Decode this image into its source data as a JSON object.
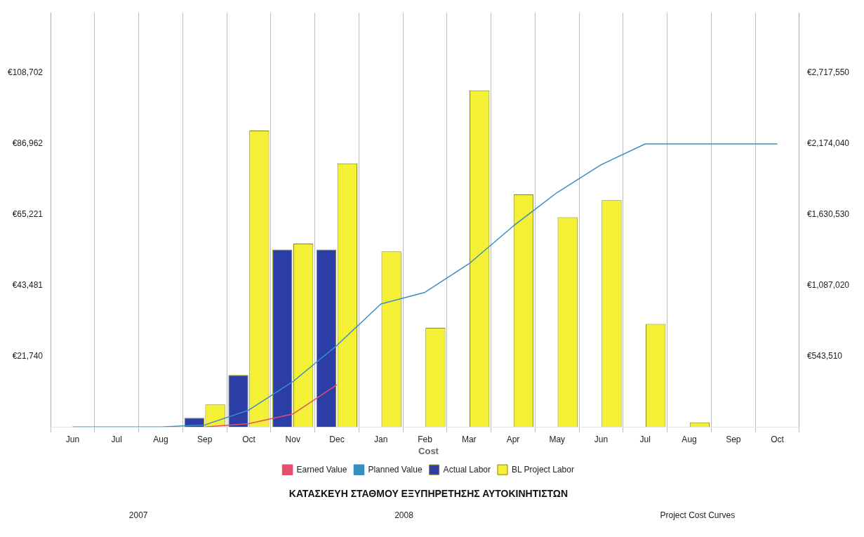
{
  "chart_data": {
    "type": "bar",
    "title": "ΚΑΤΑΣΚΕΥΗ ΣΤΑΘΜΟΥ ΕΞΥΠΗΡΕΤΗΣΗΣ ΑΥΤΟΚΙΝΗΤΙΣΤΩΝ",
    "categories": [
      "Jun",
      "Jul",
      "Aug",
      "Sep",
      "Oct",
      "Nov",
      "Dec",
      "Jan",
      "Feb",
      "Mar",
      "Apr",
      "May",
      "Jun",
      "Jul",
      "Aug",
      "Sep",
      "Oct"
    ],
    "series": [
      {
        "name": "Actual Labor",
        "color": "#2b3da6",
        "values": [
          null,
          null,
          null,
          2800,
          15900,
          54400,
          54400,
          null,
          null,
          null,
          null,
          null,
          null,
          null,
          null,
          null,
          null
        ]
      },
      {
        "name": "BL Project Labor",
        "color": "#f4f036",
        "values": [
          null,
          null,
          null,
          6900,
          90900,
          56200,
          80800,
          53800,
          30400,
          103200,
          71300,
          64300,
          69500,
          31600,
          1400,
          null,
          null
        ]
      },
      {
        "name": "Earned Value",
        "type": "line",
        "axis": "y2",
        "color": "#e2506c",
        "values": [
          null,
          null,
          null,
          0,
          25000,
          99000,
          323000,
          null,
          null,
          null,
          null,
          null,
          null,
          null,
          null,
          null,
          null
        ]
      },
      {
        "name": "Planned Value",
        "type": "line",
        "axis": "y2",
        "color": "#3a8ec0",
        "values": [
          0,
          0,
          0,
          15000,
          129000,
          347000,
          625000,
          943000,
          1032000,
          1251000,
          1539000,
          1797000,
          2010000,
          2170000,
          2170000,
          2170000,
          2170000
        ]
      }
    ],
    "ylim": [
      0,
      127000
    ],
    "yticks": [
      {
        "value": 21740,
        "label": "€21,740"
      },
      {
        "value": 43481,
        "label": "€43,481"
      },
      {
        "value": 65221,
        "label": "€65,221"
      },
      {
        "value": 86962,
        "label": "€86,962"
      },
      {
        "value": 108702,
        "label": "€108,702"
      }
    ],
    "y2lim": [
      0,
      3175000
    ],
    "y2ticks": [
      {
        "value": 543510,
        "label": "€543,510"
      },
      {
        "value": 1087020,
        "label": "€1,087,020"
      },
      {
        "value": 1630530,
        "label": "€1,630,530"
      },
      {
        "value": 2174040,
        "label": "€2,174,040"
      },
      {
        "value": 2717550,
        "label": "€2,717,550"
      }
    ],
    "grid": "x",
    "legend": "bottom",
    "legend_title": "Cost",
    "marker": "none",
    "annotations": [
      "2007",
      "2008",
      "Project Cost Curves"
    ]
  }
}
